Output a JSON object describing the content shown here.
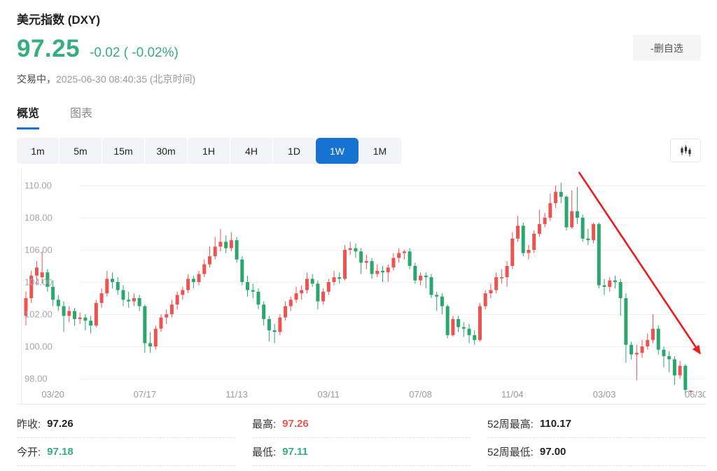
{
  "header": {
    "title": "美元指数 (DXY)",
    "price": "97.25",
    "change": "-0.02 ( -0.02%)",
    "status_prefix": "交易中，",
    "timestamp": "2025-06-30 08:40:35 (北京时间)",
    "watchlist_button": "-删自选"
  },
  "tabs": [
    {
      "label": "概览",
      "active": true
    },
    {
      "label": "图表",
      "active": false
    }
  ],
  "intervals": {
    "options": [
      "1m",
      "5m",
      "15m",
      "30m",
      "1H",
      "4H",
      "1D",
      "1W",
      "1M"
    ],
    "selected": "1W"
  },
  "colors": {
    "up": "#ef5350",
    "down": "#2aa76d",
    "accent": "#1673d2",
    "price_green": "#35ae7e",
    "stat_red": "#ef5350",
    "stat_dark": "#222222",
    "arrow": "#ec1c1c",
    "grid": "#f0f0f0",
    "axis_text": "#a5a5a5",
    "frame": "#eaeaea"
  },
  "chart_data": {
    "type": "candlestick",
    "interval": "weekly",
    "y_ticks": [
      110,
      108,
      106,
      104,
      102,
      100,
      98
    ],
    "y_tick_labels": [
      "110.00",
      "108.00",
      "106.00",
      "104.00",
      "102.00",
      "100.00",
      "98.00"
    ],
    "x_labels": [
      {
        "label": "03/20",
        "index": 5
      },
      {
        "label": "07/17",
        "index": 22
      },
      {
        "label": "11/13",
        "index": 39
      },
      {
        "label": "03/11",
        "index": 56
      },
      {
        "label": "07/08",
        "index": 73
      },
      {
        "label": "11/04",
        "index": 90
      },
      {
        "label": "03/03",
        "index": 107
      },
      {
        "label": "06/30",
        "index": 124
      }
    ],
    "up_means": "red (CN convention)",
    "candles": [
      [
        101.9,
        103.4,
        101.3,
        103.0
      ],
      [
        103.0,
        104.7,
        102.7,
        104.4
      ],
      [
        104.4,
        105.3,
        103.8,
        104.9
      ],
      [
        104.3,
        105.9,
        103.9,
        104.6
      ],
      [
        104.6,
        104.8,
        103.4,
        103.7
      ],
      [
        103.7,
        104.1,
        102.5,
        102.9
      ],
      [
        102.9,
        103.2,
        102.2,
        102.5
      ],
      [
        102.5,
        102.8,
        100.9,
        101.9
      ],
      [
        101.9,
        102.5,
        101.5,
        102.2
      ],
      [
        102.2,
        102.4,
        101.3,
        101.7
      ],
      [
        101.7,
        102.1,
        101.4,
        101.8
      ],
      [
        101.8,
        102.0,
        101.0,
        101.6
      ],
      [
        101.6,
        101.9,
        100.8,
        101.3
      ],
      [
        101.3,
        102.9,
        101.2,
        102.7
      ],
      [
        102.7,
        103.6,
        102.4,
        103.3
      ],
      [
        103.3,
        104.7,
        103.1,
        104.2
      ],
      [
        104.2,
        104.6,
        103.6,
        104.0
      ],
      [
        104.0,
        104.3,
        103.2,
        103.5
      ],
      [
        103.5,
        103.8,
        102.5,
        102.9
      ],
      [
        102.9,
        103.4,
        102.4,
        102.8
      ],
      [
        102.8,
        103.3,
        102.5,
        103.0
      ],
      [
        103.0,
        103.2,
        102.2,
        102.5
      ],
      [
        102.5,
        102.6,
        99.6,
        100.2
      ],
      [
        100.2,
        100.9,
        99.6,
        100.0
      ],
      [
        100.0,
        101.3,
        99.8,
        101.1
      ],
      [
        101.1,
        102.0,
        100.9,
        101.8
      ],
      [
        101.8,
        102.3,
        101.4,
        102.0
      ],
      [
        102.0,
        102.9,
        101.8,
        102.6
      ],
      [
        102.6,
        103.4,
        102.3,
        103.2
      ],
      [
        103.2,
        103.7,
        102.9,
        103.5
      ],
      [
        103.5,
        104.5,
        103.3,
        104.2
      ],
      [
        104.2,
        104.4,
        103.6,
        104.0
      ],
      [
        104.0,
        104.7,
        103.8,
        104.5
      ],
      [
        104.5,
        105.4,
        104.3,
        105.1
      ],
      [
        105.1,
        106.2,
        104.9,
        105.6
      ],
      [
        105.6,
        106.8,
        105.4,
        106.2
      ],
      [
        106.2,
        107.3,
        105.9,
        106.5
      ],
      [
        106.5,
        106.9,
        105.8,
        106.1
      ],
      [
        106.1,
        107.1,
        105.9,
        106.6
      ],
      [
        106.6,
        106.8,
        105.2,
        105.4
      ],
      [
        105.4,
        105.6,
        103.8,
        104.0
      ],
      [
        104.0,
        104.4,
        103.1,
        103.5
      ],
      [
        103.5,
        103.9,
        103.0,
        103.4
      ],
      [
        103.4,
        103.6,
        102.3,
        102.6
      ],
      [
        102.6,
        102.8,
        101.3,
        101.7
      ],
      [
        101.7,
        101.9,
        100.3,
        101.0
      ],
      [
        101.0,
        101.4,
        100.2,
        100.9
      ],
      [
        100.9,
        102.0,
        100.7,
        101.8
      ],
      [
        101.8,
        102.8,
        101.6,
        102.5
      ],
      [
        102.5,
        103.1,
        102.2,
        102.9
      ],
      [
        102.9,
        103.7,
        102.7,
        103.3
      ],
      [
        103.3,
        103.8,
        102.9,
        103.5
      ],
      [
        103.5,
        104.6,
        103.3,
        104.2
      ],
      [
        104.2,
        104.5,
        103.7,
        103.9
      ],
      [
        103.9,
        104.1,
        102.3,
        102.8
      ],
      [
        102.8,
        103.6,
        102.6,
        103.4
      ],
      [
        103.4,
        104.2,
        103.2,
        104.0
      ],
      [
        104.0,
        104.7,
        103.8,
        104.3
      ],
      [
        104.3,
        104.6,
        103.9,
        104.2
      ],
      [
        104.2,
        106.3,
        104.1,
        106.0
      ],
      [
        106.0,
        106.5,
        105.7,
        106.1
      ],
      [
        106.1,
        106.4,
        105.5,
        105.9
      ],
      [
        105.9,
        106.1,
        104.5,
        105.2
      ],
      [
        105.2,
        105.7,
        104.8,
        105.3
      ],
      [
        105.3,
        105.5,
        104.2,
        104.5
      ],
      [
        104.5,
        105.1,
        104.3,
        104.7
      ],
      [
        104.7,
        105.0,
        104.0,
        104.6
      ],
      [
        104.6,
        105.1,
        104.0,
        104.9
      ],
      [
        104.9,
        105.8,
        104.7,
        105.5
      ],
      [
        105.5,
        106.1,
        105.2,
        105.8
      ],
      [
        105.8,
        106.0,
        105.4,
        105.9
      ],
      [
        105.9,
        106.1,
        104.8,
        105.0
      ],
      [
        105.0,
        105.2,
        103.9,
        104.1
      ],
      [
        104.1,
        104.6,
        103.8,
        104.4
      ],
      [
        104.4,
        104.6,
        103.6,
        104.3
      ],
      [
        104.3,
        104.5,
        103.0,
        103.2
      ],
      [
        103.2,
        103.4,
        102.2,
        103.1
      ],
      [
        103.1,
        103.3,
        102.0,
        102.5
      ],
      [
        102.5,
        102.6,
        100.5,
        100.7
      ],
      [
        100.7,
        101.9,
        100.6,
        101.7
      ],
      [
        101.7,
        101.9,
        100.9,
        101.2
      ],
      [
        101.2,
        101.5,
        100.6,
        101.1
      ],
      [
        101.1,
        101.4,
        100.2,
        100.7
      ],
      [
        100.7,
        101.0,
        100.1,
        100.4
      ],
      [
        100.4,
        102.7,
        100.3,
        102.5
      ],
      [
        102.5,
        103.5,
        102.3,
        103.3
      ],
      [
        103.3,
        103.9,
        103.0,
        103.5
      ],
      [
        103.5,
        104.6,
        103.3,
        104.3
      ],
      [
        104.3,
        104.8,
        103.9,
        104.3
      ],
      [
        104.3,
        105.3,
        103.7,
        105.0
      ],
      [
        105.0,
        107.1,
        104.8,
        106.7
      ],
      [
        106.7,
        108.1,
        106.5,
        107.5
      ],
      [
        107.5,
        107.7,
        105.6,
        105.8
      ],
      [
        105.8,
        106.3,
        105.4,
        106.0
      ],
      [
        106.0,
        107.2,
        105.8,
        107.0
      ],
      [
        107.0,
        108.5,
        106.8,
        107.6
      ],
      [
        107.6,
        108.3,
        107.4,
        108.0
      ],
      [
        108.0,
        109.5,
        107.8,
        108.9
      ],
      [
        108.9,
        110.0,
        108.6,
        109.6
      ],
      [
        109.6,
        110.17,
        108.9,
        109.3
      ],
      [
        109.3,
        109.4,
        107.2,
        107.4
      ],
      [
        107.4,
        109.7,
        107.3,
        108.4
      ],
      [
        108.4,
        109.9,
        107.6,
        108.0
      ],
      [
        108.0,
        108.2,
        106.5,
        106.7
      ],
      [
        106.7,
        107.3,
        106.3,
        106.6
      ],
      [
        106.6,
        107.7,
        106.4,
        107.6
      ],
      [
        107.6,
        107.7,
        103.6,
        103.8
      ],
      [
        103.8,
        104.2,
        103.2,
        103.7
      ],
      [
        103.7,
        104.3,
        103.4,
        104.1
      ],
      [
        104.1,
        104.4,
        103.6,
        104.0
      ],
      [
        104.0,
        104.2,
        101.9,
        103.0
      ],
      [
        103.0,
        103.3,
        99.0,
        100.1
      ],
      [
        100.1,
        100.3,
        99.2,
        99.5
      ],
      [
        99.5,
        100.1,
        97.9,
        99.6
      ],
      [
        99.6,
        100.4,
        99.3,
        100.0
      ],
      [
        100.0,
        100.8,
        99.8,
        100.4
      ],
      [
        100.4,
        102.0,
        100.2,
        101.1
      ],
      [
        101.1,
        101.3,
        99.5,
        99.8
      ],
      [
        99.8,
        100.0,
        98.7,
        99.4
      ],
      [
        99.4,
        99.7,
        98.4,
        99.2
      ],
      [
        99.2,
        99.4,
        97.6,
        98.2
      ],
      [
        98.2,
        99.1,
        98.0,
        98.8
      ],
      [
        98.8,
        98.9,
        97.0,
        97.3
      ],
      [
        97.18,
        97.26,
        97.11,
        97.25
      ]
    ],
    "annotation_arrow": {
      "from_index": 102.3,
      "from_price": 110.83,
      "to_index": 124.7,
      "to_price": 99.57
    }
  },
  "stats": {
    "items": [
      {
        "label": "昨收:",
        "value": "97.26",
        "color": "dark"
      },
      {
        "label": "最高:",
        "value": "97.26",
        "color": "red"
      },
      {
        "label": "52周最高:",
        "value": "110.17",
        "color": "dark"
      },
      {
        "label": "今开:",
        "value": "97.18",
        "color": "green"
      },
      {
        "label": "最低:",
        "value": "97.11",
        "color": "green"
      },
      {
        "label": "52周最低:",
        "value": "97.00",
        "color": "dark"
      }
    ]
  }
}
